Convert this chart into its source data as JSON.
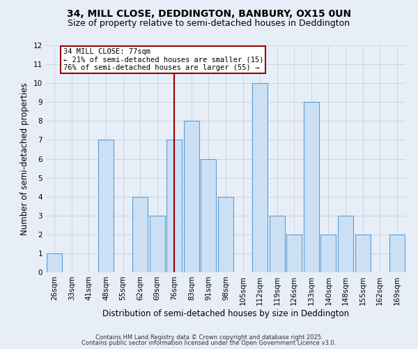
{
  "title": "34, MILL CLOSE, DEDDINGTON, BANBURY, OX15 0UN",
  "subtitle": "Size of property relative to semi-detached houses in Deddington",
  "xlabel": "Distribution of semi-detached houses by size in Deddington",
  "ylabel": "Number of semi-detached properties",
  "categories": [
    "26sqm",
    "33sqm",
    "41sqm",
    "48sqm",
    "55sqm",
    "62sqm",
    "69sqm",
    "76sqm",
    "83sqm",
    "91sqm",
    "98sqm",
    "105sqm",
    "112sqm",
    "119sqm",
    "126sqm",
    "133sqm",
    "140sqm",
    "148sqm",
    "155sqm",
    "162sqm",
    "169sqm"
  ],
  "values": [
    1,
    0,
    0,
    7,
    0,
    4,
    3,
    7,
    8,
    6,
    4,
    0,
    10,
    3,
    2,
    9,
    2,
    3,
    2,
    0,
    2
  ],
  "bar_color": "#cce0f5",
  "bar_edge_color": "#5b9bd5",
  "highlight_index": 7,
  "highlight_color_red": "#990000",
  "ylim": [
    0,
    12
  ],
  "yticks": [
    0,
    1,
    2,
    3,
    4,
    5,
    6,
    7,
    8,
    9,
    10,
    11,
    12
  ],
  "grid_color": "#c8d0dc",
  "background_color": "#e8eef8",
  "annotation_title": "34 MILL CLOSE: 77sqm",
  "annotation_line1": "← 21% of semi-detached houses are smaller (15)",
  "annotation_line2": "76% of semi-detached houses are larger (55) →",
  "footer1": "Contains HM Land Registry data © Crown copyright and database right 2025.",
  "footer2": "Contains public sector information licensed under the Open Government Licence v3.0.",
  "title_fontsize": 10,
  "subtitle_fontsize": 9,
  "axis_label_fontsize": 8.5,
  "tick_fontsize": 7.5,
  "annotation_fontsize": 7.5,
  "footer_fontsize": 6
}
